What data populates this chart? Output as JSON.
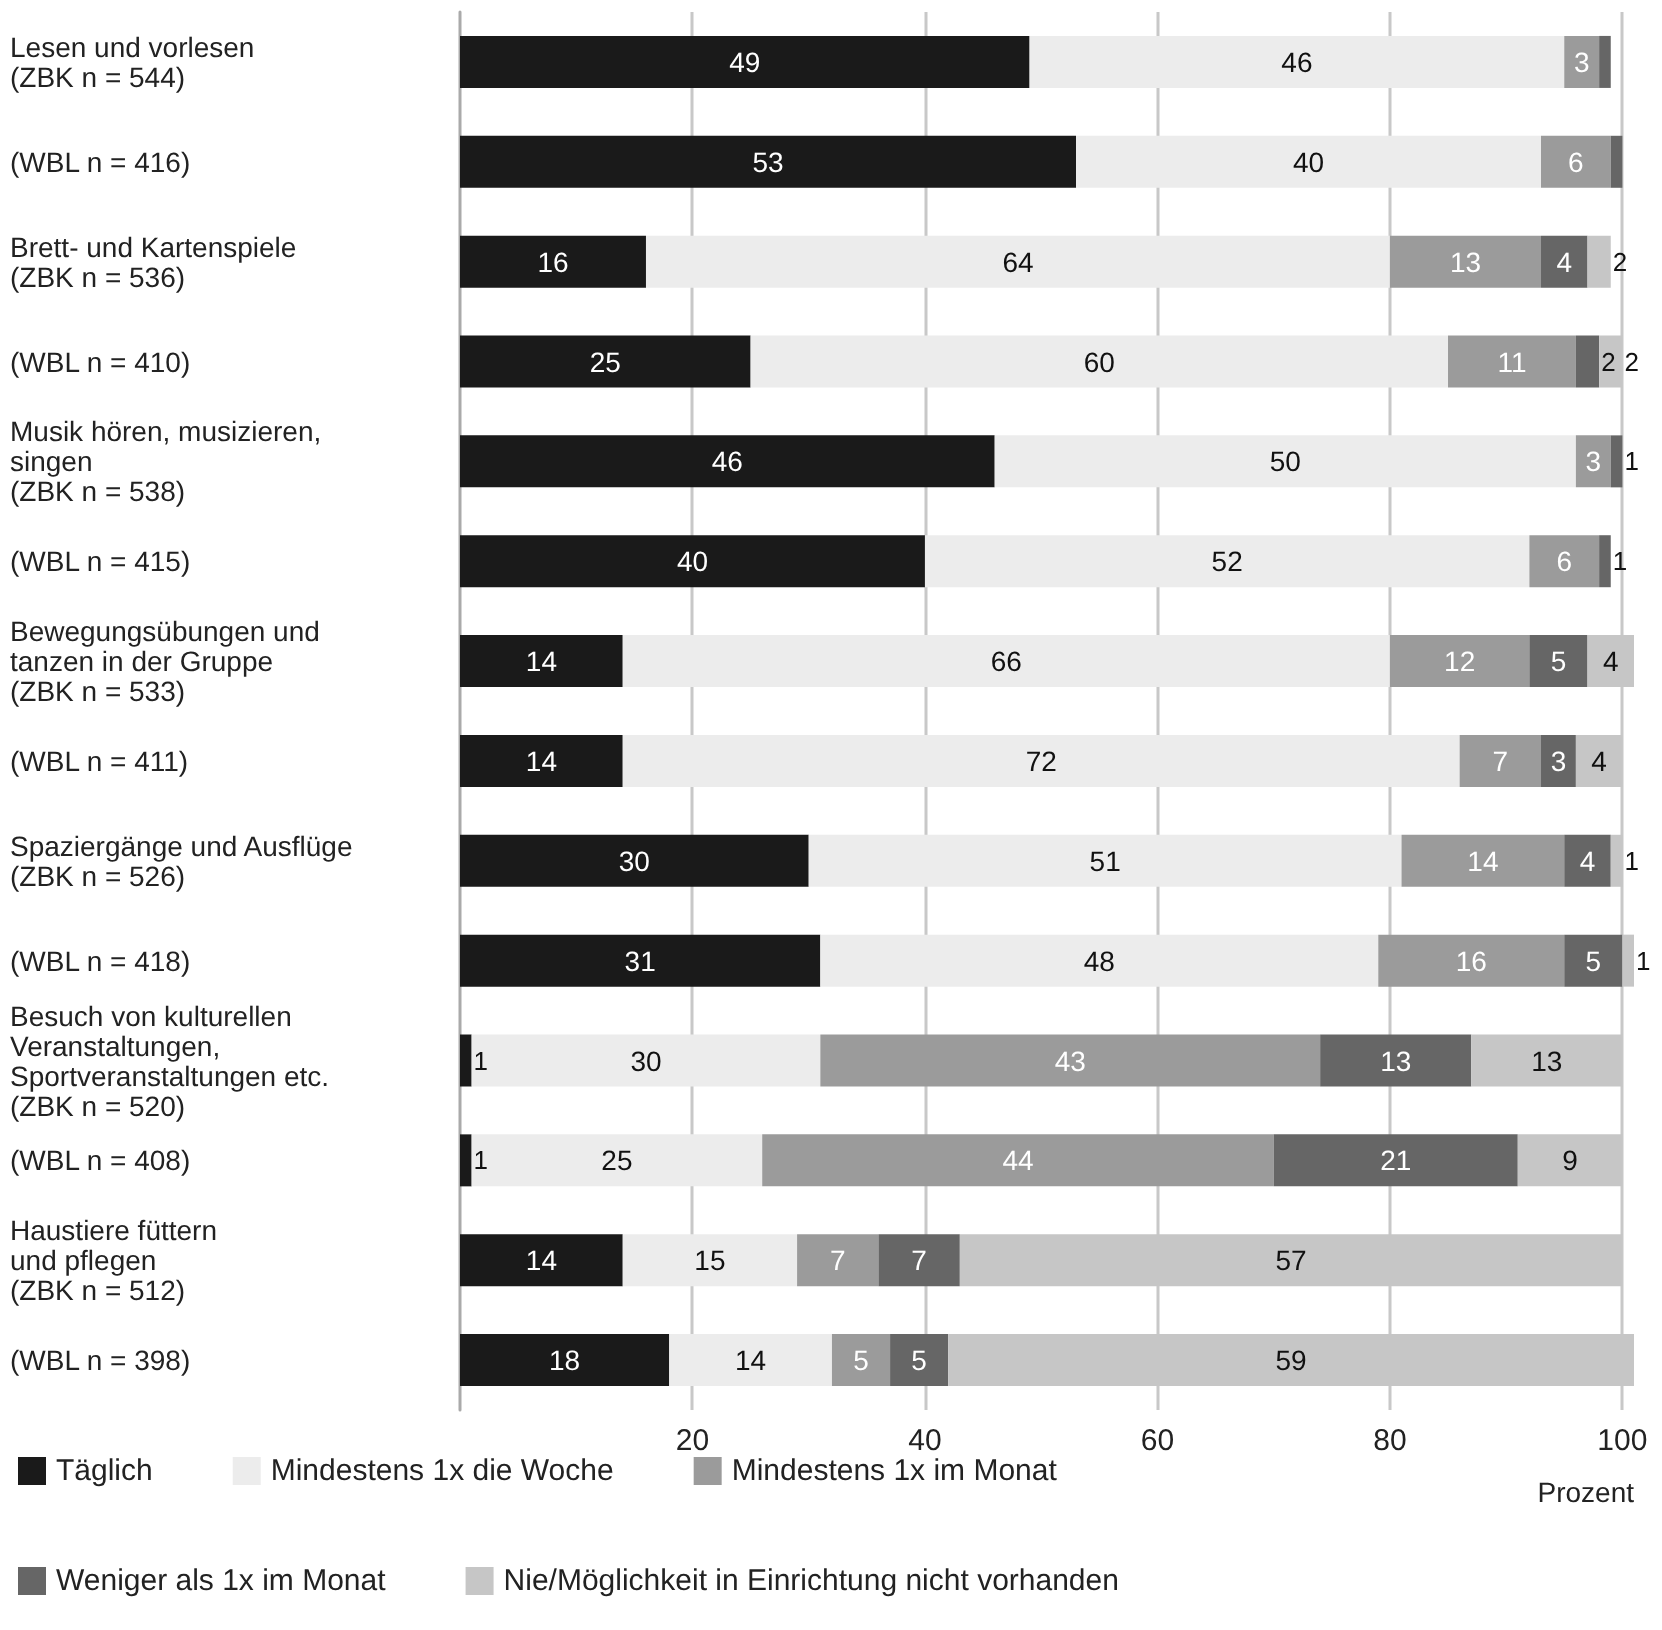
{
  "chart_data": {
    "type": "bar",
    "orientation": "horizontal",
    "stacked": true,
    "xlabel": "Prozent",
    "categories": [
      "Lesen und vorlesen\n(ZBK n = 544)",
      "(WBL n = 416)",
      "Brett- und Kartenspiele\n(ZBK n = 536)",
      "(WBL n = 410)",
      "Musik hören, musizieren,\nsingen\n(ZBK n = 538)",
      "(WBL n = 415)",
      "Bewegungsübungen und\ntanzen in der Gruppe\n(ZBK n = 533)",
      "(WBL n = 411)",
      "Spaziergänge und Ausflüge\n(ZBK n = 526)",
      "(WBL n = 418)",
      "Besuch von kulturellen\nVeranstaltungen,\nSportveranstaltungen etc.\n(ZBK n = 520)",
      "(WBL n = 408)",
      "Haustiere füttern\nund pflegen\n(ZBK n = 512)",
      "(WBL n = 398)"
    ],
    "series": [
      {
        "name": "Täglich",
        "color": "#1a1a1a",
        "values": [
          49,
          53,
          16,
          25,
          46,
          40,
          14,
          14,
          30,
          31,
          1,
          1,
          14,
          18
        ],
        "value_labels": [
          "49",
          "53",
          "16",
          "25",
          "46",
          "40",
          "14",
          "14",
          "30",
          "31",
          "1",
          "1",
          "14",
          "18"
        ]
      },
      {
        "name": "Mindestens 1x die Woche",
        "color": "#ececec",
        "values": [
          46,
          40,
          64,
          60,
          50,
          52,
          66,
          72,
          51,
          48,
          30,
          25,
          15,
          14
        ],
        "value_labels": [
          "46",
          "40",
          "64",
          "60",
          "50",
          "52",
          "66",
          "72",
          "51",
          "48",
          "30",
          "25",
          "15",
          "14"
        ]
      },
      {
        "name": "Mindestens 1x im Monat",
        "color": "#9b9b9b",
        "values": [
          3,
          6,
          13,
          11,
          3,
          6,
          12,
          7,
          14,
          16,
          43,
          44,
          7,
          5
        ],
        "value_labels": [
          "3",
          "6",
          "13",
          "11",
          "3",
          "6",
          "12",
          "7",
          "14",
          "16",
          "43",
          "44",
          "7",
          "5"
        ]
      },
      {
        "name": "Weniger als 1x im Monat",
        "color": "#666666",
        "values": [
          1,
          1,
          4,
          2,
          1,
          1,
          5,
          3,
          4,
          5,
          13,
          21,
          7,
          5
        ],
        "value_labels": [
          null,
          null,
          "4",
          "2",
          "1",
          "1",
          "5",
          "3",
          "4",
          "5",
          "13",
          "21",
          "7",
          "5"
        ]
      },
      {
        "name": "Nie/Möglichkeit in Einrichtung nicht vorhanden",
        "color": "#c6c6c6",
        "values": [
          null,
          null,
          2,
          2,
          null,
          null,
          4,
          4,
          1,
          1,
          13,
          9,
          57,
          59
        ],
        "value_labels": [
          null,
          null,
          "2",
          "2",
          null,
          null,
          "4",
          "4",
          "1",
          "1",
          "13",
          "9",
          "57",
          "59"
        ]
      }
    ],
    "xlim": [
      0,
      101
    ],
    "xticks": [
      20,
      40,
      60,
      80,
      100
    ],
    "grid": "x",
    "legend": "bottom"
  }
}
